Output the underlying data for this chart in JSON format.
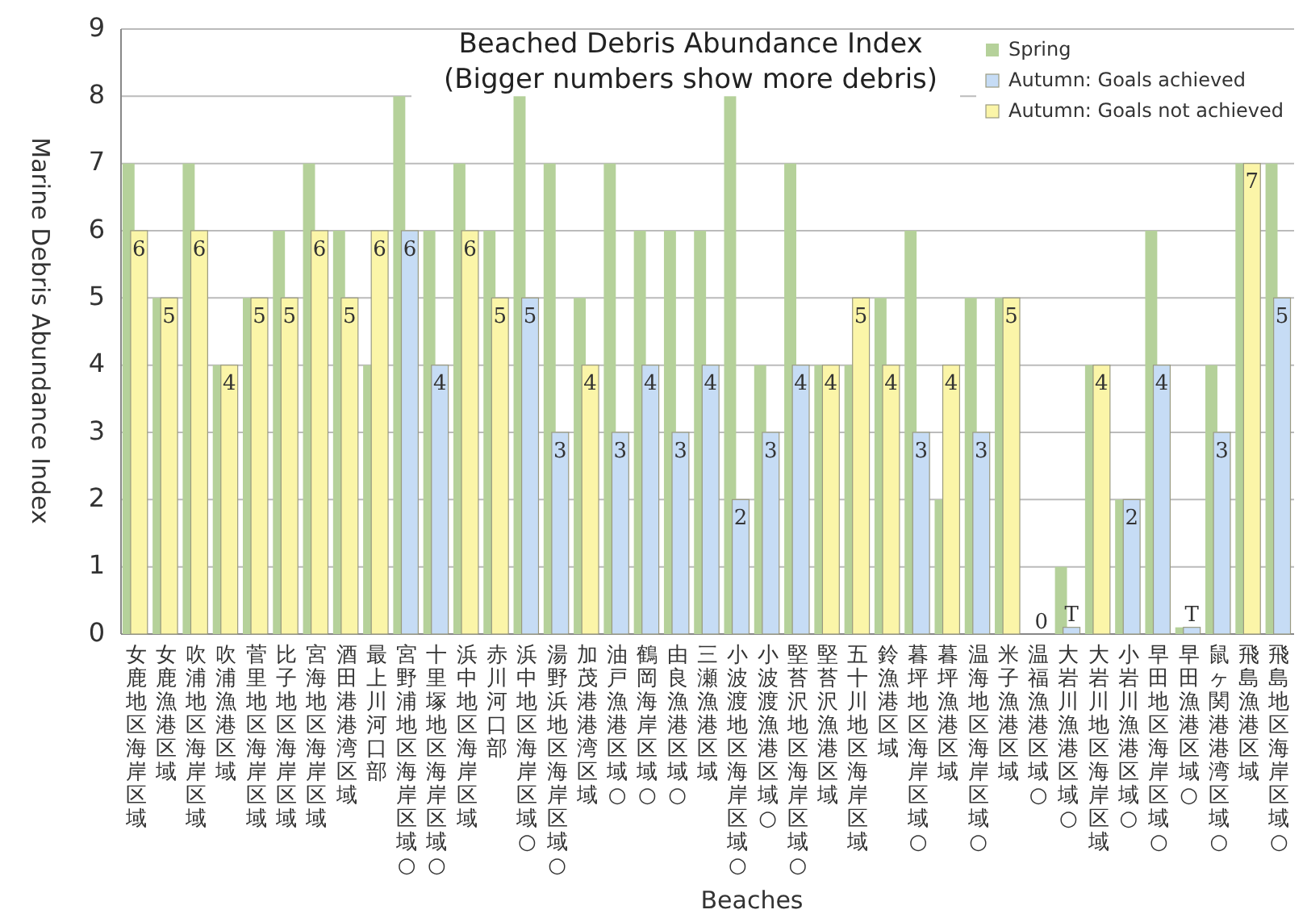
{
  "chart_data": {
    "type": "bar",
    "title": "Beached Debris Abundance Index",
    "subtitle": "(Bigger numbers show more debris)",
    "xlabel": "Beaches",
    "ylabel": "Marine Debris Abundance Index",
    "categories": [
      "女鹿地区海岸区域",
      "女鹿漁港区域",
      "吹浦地区海岸区域",
      "吹浦漁港区域",
      "菅里地区海岸区域",
      "比子地区海岸区域",
      "宮海地区海岸区域",
      "酒田港港湾区域",
      "最上川河口部",
      "宮野浦地区海岸区域○",
      "十里塚地区海岸区域○",
      "浜中地区海岸区域",
      "赤川河口部",
      "浜中地区海岸区域○",
      "湯野浜地区海岸区域○",
      "加茂港港湾区域",
      "油戸漁港区域○",
      "鶴岡海岸区域○",
      "由良漁港区域○",
      "三瀬漁港区域",
      "小波渡地区海岸区域○",
      "小波渡漁港区域○",
      "堅苔沢地区海岸区域○",
      "堅苔沢漁港区域",
      "五十川地区海岸区域",
      "鈴漁港区域",
      "暮坪地区海岸区域○",
      "暮坪漁港区域",
      "温海地区海岸区域○",
      "米子漁港区域",
      "温福漁港区域○",
      "大岩川漁港区域○",
      "大岩川地区海岸区域",
      "小岩川漁港区域○",
      "早田地区海岸区域○",
      "早田漁港区域○",
      "鼠ヶ関港港湾区域○",
      "飛島漁港区域",
      "飛島地区海岸区域○"
    ],
    "series": [
      {
        "name": "Spring",
        "color": "#b5d19a",
        "values": [
          7,
          5,
          7,
          4,
          5,
          6,
          7,
          6,
          4,
          8,
          6,
          7,
          6,
          8,
          7,
          5,
          7,
          6,
          6,
          6,
          8,
          4,
          7,
          4,
          4,
          5,
          6,
          2,
          5,
          5,
          0,
          1,
          4,
          2,
          6,
          0.1,
          4,
          7,
          7
        ]
      },
      {
        "name": "Autumn: Goals achieved",
        "color": "#c6dcf5",
        "values": [
          null,
          null,
          null,
          null,
          null,
          null,
          null,
          null,
          null,
          6,
          4,
          null,
          null,
          5,
          3,
          null,
          3,
          4,
          3,
          4,
          2,
          3,
          4,
          null,
          null,
          null,
          3,
          null,
          3,
          null,
          0,
          0.1,
          null,
          2,
          4,
          0.1,
          3,
          null,
          5
        ],
        "value_labels": [
          null,
          null,
          null,
          null,
          null,
          null,
          null,
          null,
          null,
          "6",
          "4",
          null,
          null,
          "5",
          "3",
          null,
          "3",
          "4",
          "3",
          "4",
          "2",
          "3",
          "4",
          null,
          null,
          null,
          "3",
          null,
          "3",
          null,
          "0",
          "T",
          null,
          "2",
          "4",
          "T",
          "3",
          null,
          "5"
        ]
      },
      {
        "name": "Autumn: Goals not achieved",
        "color": "#fbf5a8",
        "values": [
          6,
          5,
          6,
          4,
          5,
          5,
          6,
          5,
          6,
          null,
          null,
          6,
          5,
          null,
          null,
          4,
          null,
          null,
          null,
          null,
          null,
          null,
          null,
          4,
          5,
          4,
          null,
          4,
          null,
          5,
          null,
          null,
          4,
          null,
          null,
          null,
          null,
          7,
          null
        ],
        "value_labels": [
          "6",
          "5",
          "6",
          "4",
          "5",
          "5",
          "6",
          "5",
          "6",
          null,
          null,
          "6",
          "5",
          null,
          null,
          "4",
          null,
          null,
          null,
          null,
          null,
          null,
          null,
          "4",
          "5",
          "4",
          null,
          "4",
          null,
          "5",
          null,
          null,
          "4",
          null,
          null,
          null,
          null,
          "7",
          null
        ]
      }
    ],
    "ylim": [
      0,
      9
    ],
    "yticks": [
      0,
      1,
      2,
      3,
      4,
      5,
      6,
      7,
      8,
      9
    ],
    "grid": "y",
    "legend": "top right"
  }
}
